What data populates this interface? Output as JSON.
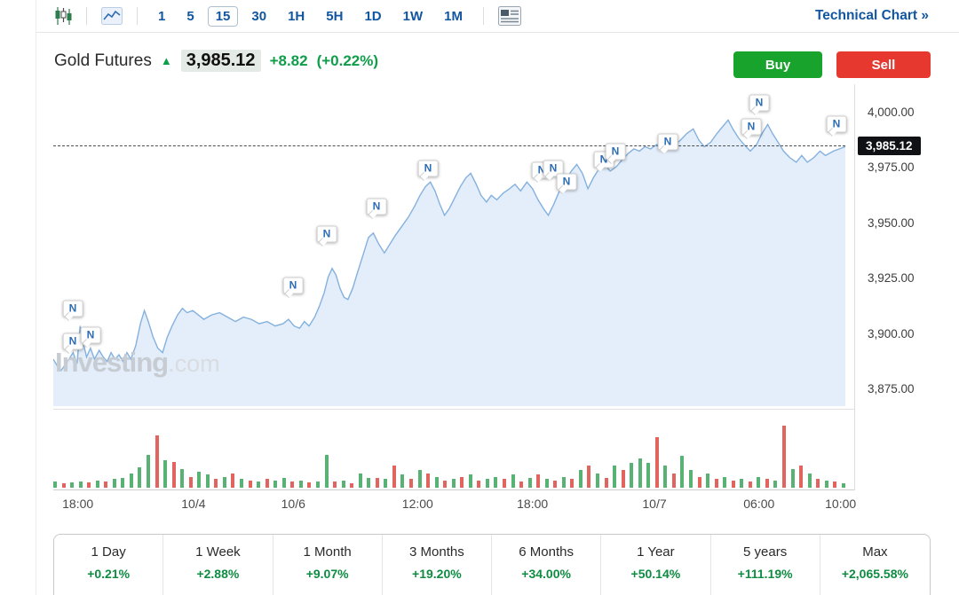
{
  "toolbar": {
    "timeframes": [
      "1",
      "5",
      "15",
      "30",
      "1H",
      "5H",
      "1D",
      "1W",
      "1M"
    ],
    "selected_timeframe": "15",
    "technical_chart_label": "Technical Chart »",
    "icons": [
      "candlestick-chart-icon",
      "line-chart-icon",
      "news-feed-icon"
    ]
  },
  "header": {
    "title": "Gold Futures",
    "arrow": "▲",
    "price": "3,985.12",
    "change": "+8.82",
    "change_percent": "(+0.22%)",
    "buy_label": "Buy",
    "sell_label": "Sell"
  },
  "colors": {
    "accent_blue": "#1256a0",
    "positive_green": "#0f9d49",
    "buy_green": "#17a32c",
    "sell_red": "#e6382f",
    "line_blue": "#84b1dd",
    "area_fill": "#e3eefa",
    "volume_green": "#57b273",
    "volume_red": "#e2645e",
    "price_badge_bg": "#0f1114"
  },
  "chart_data": {
    "type": "area",
    "title": "Gold Futures intraday price (15-minute)",
    "ylim": [
      3866.2,
      4013.2
    ],
    "current_price": 3985.12,
    "current_price_label": "3,985.12",
    "watermark": {
      "part1": "Investing",
      "part2": ".com"
    },
    "news_marker_letter": "N",
    "y_ticks": [
      {
        "value": 4000,
        "label": "4,000.00"
      },
      {
        "value": 3975,
        "label": "3,975.00"
      },
      {
        "value": 3950,
        "label": "3,950.00"
      },
      {
        "value": 3925,
        "label": "3,925.00"
      },
      {
        "value": 3900,
        "label": "3,900.00"
      },
      {
        "value": 3875,
        "label": "3,875.00"
      }
    ],
    "x_ticks": [
      {
        "label": "18:00",
        "x": 0.031
      },
      {
        "label": "10/4",
        "x": 0.177
      },
      {
        "label": "10/6",
        "x": 0.303
      },
      {
        "label": "12:00",
        "x": 0.46
      },
      {
        "label": "18:00",
        "x": 0.605
      },
      {
        "label": "10/7",
        "x": 0.759
      },
      {
        "label": "06:00",
        "x": 0.891
      },
      {
        "label": "10:00",
        "x": 0.994
      }
    ],
    "series": [
      {
        "name": "price",
        "points": [
          [
            0,
            3889
          ],
          [
            0.005,
            3886
          ],
          [
            0.01,
            3884
          ],
          [
            0.018,
            3888
          ],
          [
            0.025,
            3892
          ],
          [
            0.03,
            3887
          ],
          [
            0.034,
            3904
          ],
          [
            0.038,
            3896
          ],
          [
            0.042,
            3890
          ],
          [
            0.047,
            3894
          ],
          [
            0.052,
            3889
          ],
          [
            0.058,
            3893
          ],
          [
            0.063,
            3890
          ],
          [
            0.068,
            3888
          ],
          [
            0.073,
            3892
          ],
          [
            0.078,
            3889
          ],
          [
            0.083,
            3891
          ],
          [
            0.088,
            3888
          ],
          [
            0.093,
            3892
          ],
          [
            0.098,
            3889
          ],
          [
            0.104,
            3895
          ],
          [
            0.11,
            3905
          ],
          [
            0.115,
            3911
          ],
          [
            0.12,
            3906
          ],
          [
            0.126,
            3899
          ],
          [
            0.132,
            3894
          ],
          [
            0.138,
            3892
          ],
          [
            0.144,
            3899
          ],
          [
            0.15,
            3904
          ],
          [
            0.157,
            3909
          ],
          [
            0.163,
            3912
          ],
          [
            0.169,
            3910
          ],
          [
            0.176,
            3911
          ],
          [
            0.183,
            3909
          ],
          [
            0.19,
            3907
          ],
          [
            0.2,
            3909
          ],
          [
            0.21,
            3910
          ],
          [
            0.22,
            3908
          ],
          [
            0.23,
            3906
          ],
          [
            0.24,
            3908
          ],
          [
            0.25,
            3907
          ],
          [
            0.26,
            3905
          ],
          [
            0.27,
            3906
          ],
          [
            0.28,
            3904
          ],
          [
            0.29,
            3905
          ],
          [
            0.297,
            3907
          ],
          [
            0.304,
            3904
          ],
          [
            0.311,
            3903
          ],
          [
            0.317,
            3906
          ],
          [
            0.323,
            3904
          ],
          [
            0.33,
            3908
          ],
          [
            0.336,
            3913
          ],
          [
            0.342,
            3919
          ],
          [
            0.347,
            3926
          ],
          [
            0.352,
            3930
          ],
          [
            0.357,
            3927
          ],
          [
            0.362,
            3921
          ],
          [
            0.367,
            3917
          ],
          [
            0.372,
            3916
          ],
          [
            0.378,
            3921
          ],
          [
            0.384,
            3928
          ],
          [
            0.391,
            3936
          ],
          [
            0.398,
            3944
          ],
          [
            0.404,
            3946
          ],
          [
            0.411,
            3941
          ],
          [
            0.418,
            3937
          ],
          [
            0.425,
            3941
          ],
          [
            0.432,
            3945
          ],
          [
            0.44,
            3949
          ],
          [
            0.448,
            3953
          ],
          [
            0.456,
            3958
          ],
          [
            0.463,
            3963
          ],
          [
            0.47,
            3967
          ],
          [
            0.476,
            3969
          ],
          [
            0.482,
            3965
          ],
          [
            0.488,
            3959
          ],
          [
            0.494,
            3954
          ],
          [
            0.5,
            3957
          ],
          [
            0.507,
            3962
          ],
          [
            0.514,
            3967
          ],
          [
            0.521,
            3971
          ],
          [
            0.527,
            3973
          ],
          [
            0.534,
            3968
          ],
          [
            0.54,
            3963
          ],
          [
            0.547,
            3960
          ],
          [
            0.553,
            3963
          ],
          [
            0.56,
            3961
          ],
          [
            0.568,
            3964
          ],
          [
            0.576,
            3966
          ],
          [
            0.583,
            3968
          ],
          [
            0.59,
            3965
          ],
          [
            0.598,
            3969
          ],
          [
            0.605,
            3966
          ],
          [
            0.612,
            3961
          ],
          [
            0.619,
            3957
          ],
          [
            0.625,
            3954
          ],
          [
            0.632,
            3959
          ],
          [
            0.639,
            3965
          ],
          [
            0.647,
            3970
          ],
          [
            0.654,
            3974
          ],
          [
            0.661,
            3977
          ],
          [
            0.668,
            3973
          ],
          [
            0.675,
            3966
          ],
          [
            0.682,
            3971
          ],
          [
            0.689,
            3975
          ],
          [
            0.696,
            3977
          ],
          [
            0.703,
            3974
          ],
          [
            0.711,
            3976
          ],
          [
            0.718,
            3979
          ],
          [
            0.726,
            3982
          ],
          [
            0.733,
            3984
          ],
          [
            0.74,
            3983
          ],
          [
            0.747,
            3985
          ],
          [
            0.754,
            3984
          ],
          [
            0.762,
            3986
          ],
          [
            0.769,
            3985
          ],
          [
            0.777,
            3987
          ],
          [
            0.785,
            3986
          ],
          [
            0.792,
            3988
          ],
          [
            0.8,
            3991
          ],
          [
            0.808,
            3993
          ],
          [
            0.815,
            3988
          ],
          [
            0.822,
            3985
          ],
          [
            0.83,
            3987
          ],
          [
            0.838,
            3991
          ],
          [
            0.845,
            3994
          ],
          [
            0.852,
            3997
          ],
          [
            0.858,
            3993
          ],
          [
            0.865,
            3989
          ],
          [
            0.872,
            3986
          ],
          [
            0.88,
            3983
          ],
          [
            0.888,
            3986
          ],
          [
            0.895,
            3991
          ],
          [
            0.902,
            3995
          ],
          [
            0.908,
            3991
          ],
          [
            0.915,
            3987
          ],
          [
            0.922,
            3983
          ],
          [
            0.93,
            3980
          ],
          [
            0.938,
            3978
          ],
          [
            0.945,
            3981
          ],
          [
            0.952,
            3978
          ],
          [
            0.96,
            3980
          ],
          [
            0.968,
            3983
          ],
          [
            0.975,
            3981
          ],
          [
            0.985,
            3983
          ],
          [
            1,
            3985
          ]
        ]
      }
    ],
    "volume_bars": "g8 r6 g7 g9 r7 g10 r8 g12 g14 g20 g28 g45 r72 g38 r35 g26 r15 g22 g18 r12 g15 r20 g12 r10 g8 r12 g10 g14 r8 g10 r7 g8 g45 r8 g10 r6 g20 g14 r14 g12 r30 g18 r12 g24 r20 g15 r10 g12 r15 g18 r10 g12 g15 r12 g18 r8 g14 r18 g12 r10 g15 r12 g24 r30 g20 r14 g30 r24 g34 g40 g34 r70 g30 r20 g44 g24 r15 g20 r12 g15 r10 g12 r8 g15 r12 g10 r85 g25 r30 g20 r12 g10 r8 g6",
    "news_marker_positions": [
      [
        22,
        253
      ],
      [
        22,
        290
      ],
      [
        42,
        283
      ],
      [
        270,
        227
      ],
      [
        308,
        169
      ],
      [
        364,
        138
      ],
      [
        422,
        95
      ],
      [
        550,
        97
      ],
      [
        563,
        95
      ],
      [
        578,
        110
      ],
      [
        620,
        85
      ],
      [
        633,
        76
      ],
      [
        692,
        65
      ],
      [
        786,
        48
      ],
      [
        795,
        21
      ],
      [
        882,
        45
      ]
    ]
  },
  "performance": [
    {
      "label": "1 Day",
      "value": "+0.21%"
    },
    {
      "label": "1 Week",
      "value": "+2.88%"
    },
    {
      "label": "1 Month",
      "value": "+9.07%"
    },
    {
      "label": "3 Months",
      "value": "+19.20%"
    },
    {
      "label": "6 Months",
      "value": "+34.00%"
    },
    {
      "label": "1 Year",
      "value": "+50.14%"
    },
    {
      "label": "5 years",
      "value": "+111.19%"
    },
    {
      "label": "Max",
      "value": "+2,065.58%"
    }
  ]
}
